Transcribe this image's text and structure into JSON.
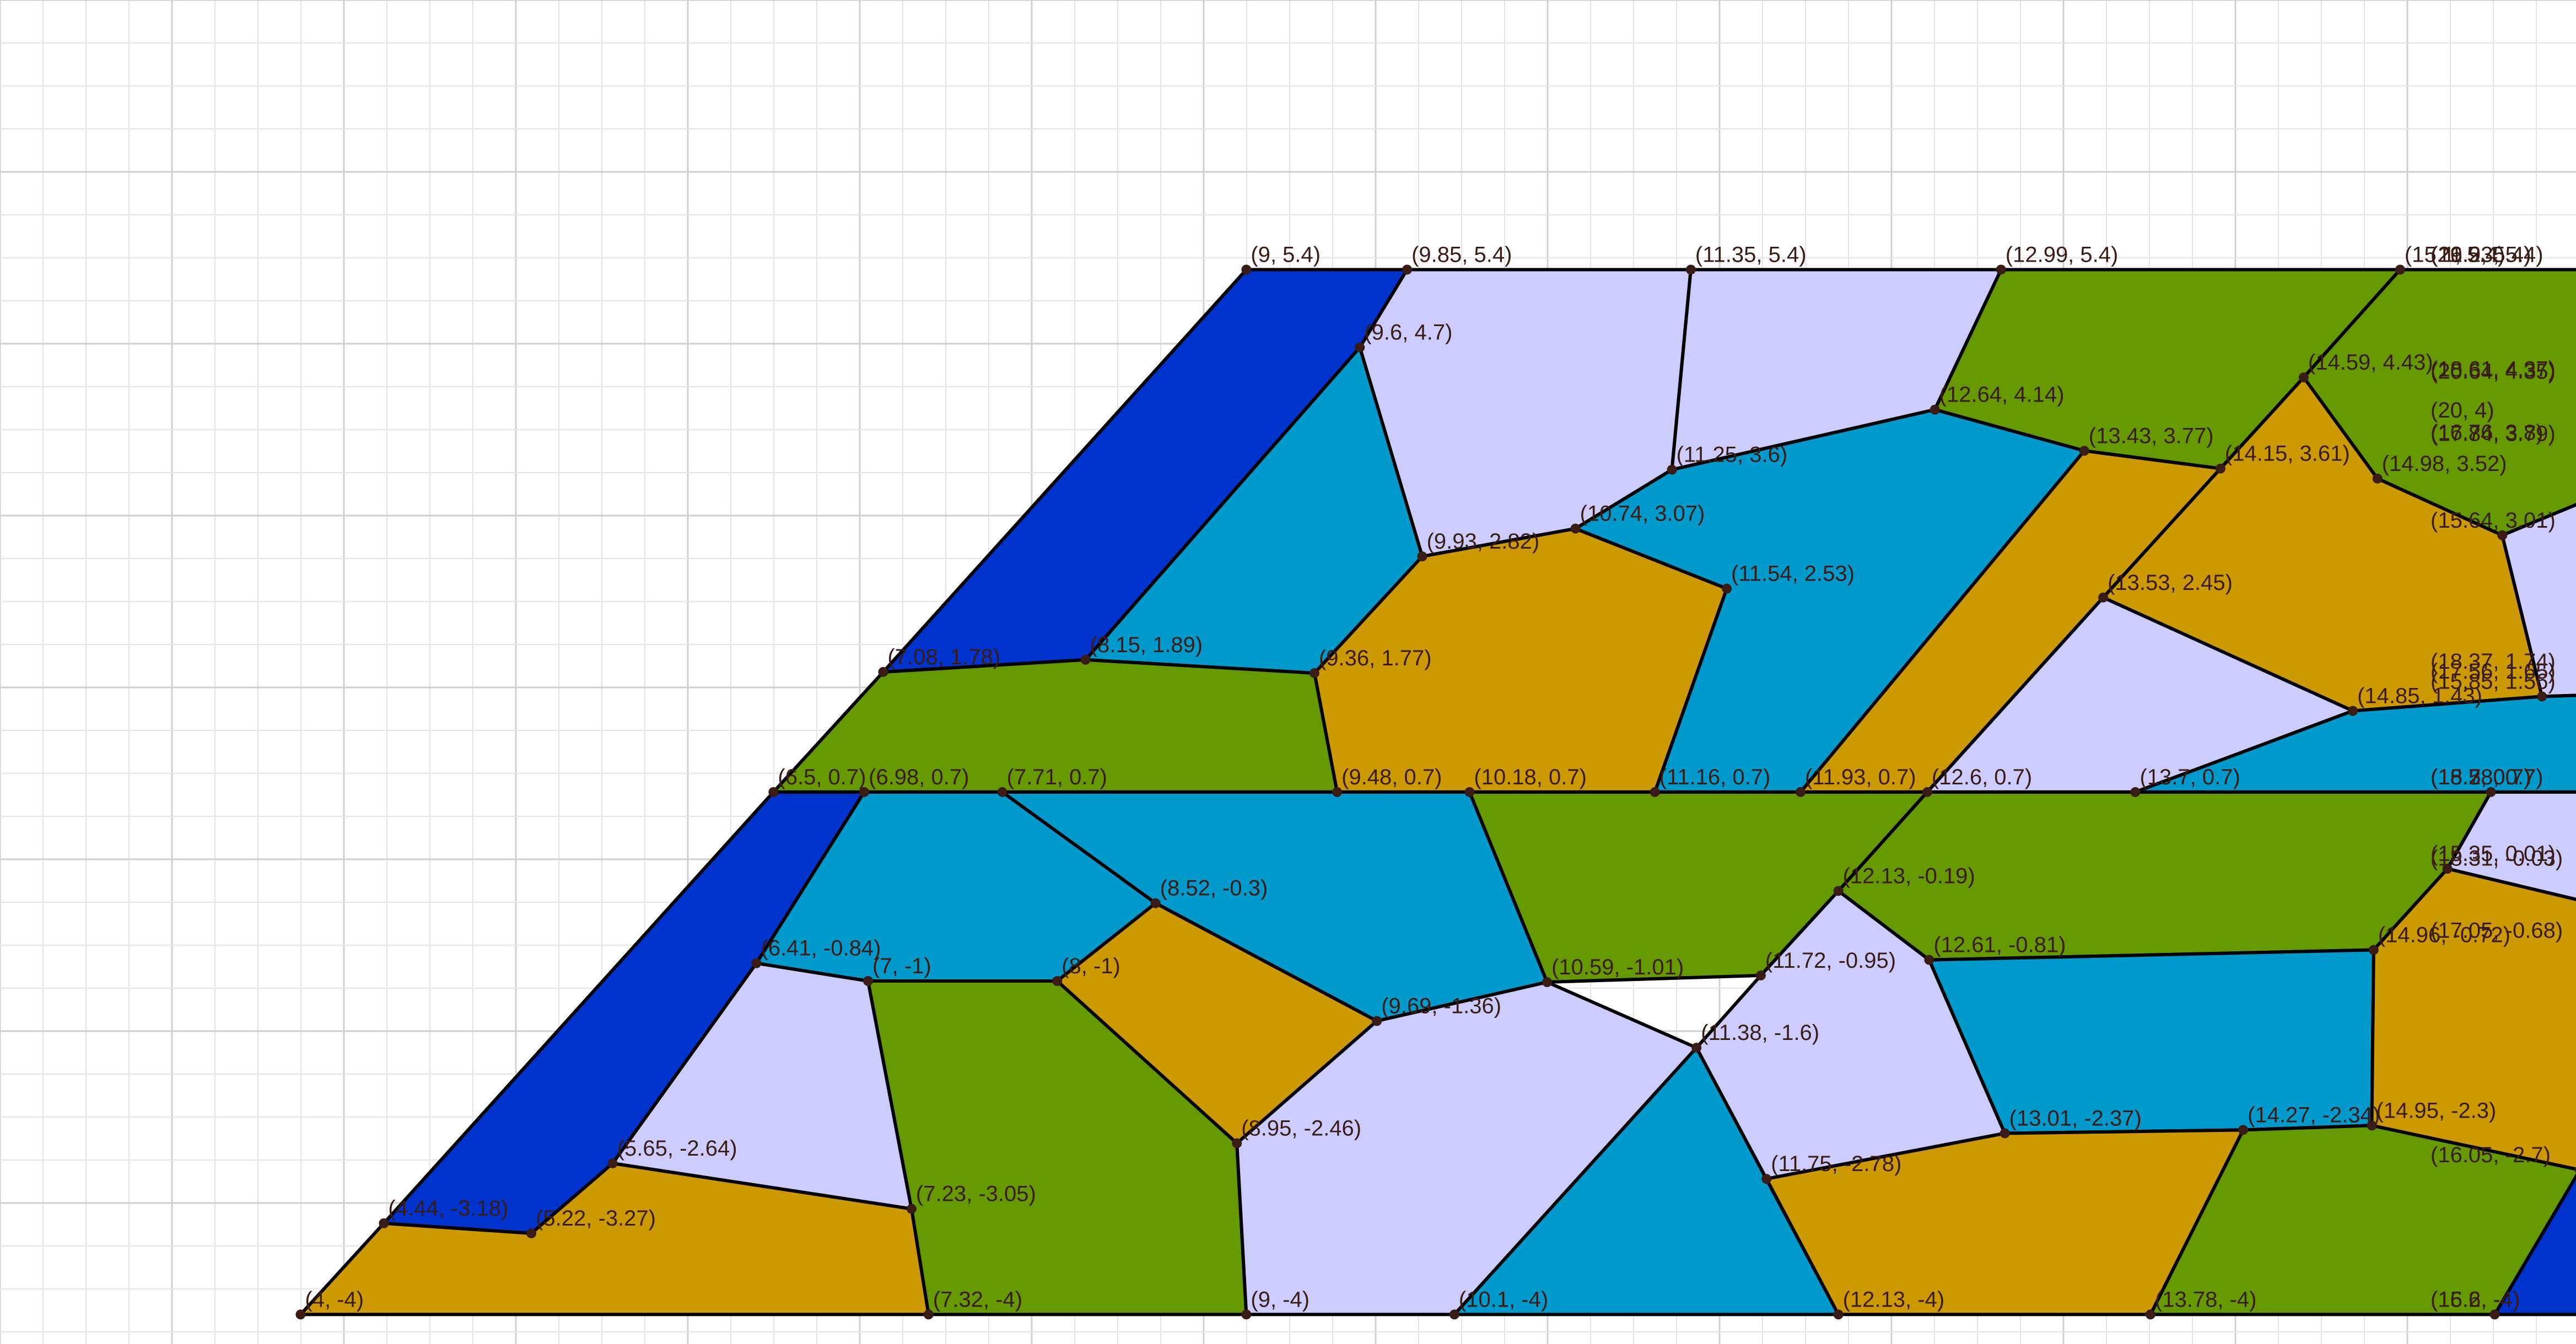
{
  "colors": {
    "navy": "#0033cc",
    "teal": "#0099cc",
    "olive": "#669900",
    "gold": "#cc9900",
    "lavender": "#ccccff"
  },
  "labels": [
    {
      "text": "(9, 5.4)",
      "x": 9,
      "y": 5.4
    },
    {
      "text": "(9.85, 5.4)",
      "x": 9.85,
      "y": 5.4
    },
    {
      "text": "(11.35, 5.4)",
      "x": 11.35,
      "y": 5.4
    },
    {
      "text": "(12.99, 5.4)",
      "x": 12.99,
      "y": 5.4
    },
    {
      "text": "(15.1, 5.4)",
      "x": 15.1,
      "y": 5.4
    },
    {
      "text": "(16.93, 5.4)",
      "x": 16.93,
      "y": 5.4
    },
    {
      "text": "(19.2, 5.4)",
      "x": 19.2,
      "y": 5.4
    },
    {
      "text": "(21.2, 5.4)",
      "x": 21.2,
      "y": 5.4
    },
    {
      "text": "(9.6, 4.7)",
      "x": 9.6,
      "y": 4.7
    },
    {
      "text": "(14.59, 4.43)",
      "x": 14.59,
      "y": 4.43
    },
    {
      "text": "(18.61, 4.37)",
      "x": 18.61,
      "y": 4.37
    },
    {
      "text": "(20.64, 4.35)",
      "x": 20.64,
      "y": 4.35
    },
    {
      "text": "(12.64, 4.14)",
      "x": 12.64,
      "y": 4.14
    },
    {
      "text": "(20, 4)",
      "x": 20,
      "y": 4
    },
    {
      "text": "(16.76, 3.8)",
      "x": 16.76,
      "y": 3.8
    },
    {
      "text": "(17.84, 3.79)",
      "x": 17.84,
      "y": 3.79
    },
    {
      "text": "(13.43, 3.77)",
      "x": 13.43,
      "y": 3.77
    },
    {
      "text": "(14.15, 3.61)",
      "x": 14.15,
      "y": 3.61
    },
    {
      "text": "(11.25, 3.6)",
      "x": 11.25,
      "y": 3.6
    },
    {
      "text": "(14.98, 3.52)",
      "x": 14.98,
      "y": 3.52
    },
    {
      "text": "(10.74, 3.07)",
      "x": 10.74,
      "y": 3.07
    },
    {
      "text": "(15.64, 3.01)",
      "x": 15.64,
      "y": 3.01
    },
    {
      "text": "(9.93, 2.82)",
      "x": 9.93,
      "y": 2.82
    },
    {
      "text": "(11.54, 2.53)",
      "x": 11.54,
      "y": 2.53
    },
    {
      "text": "(13.53, 2.45)",
      "x": 13.53,
      "y": 2.45
    },
    {
      "text": "(8.15, 1.89)",
      "x": 8.15,
      "y": 1.89
    },
    {
      "text": "(7.08, 1.78)",
      "x": 7.08,
      "y": 1.78
    },
    {
      "text": "(9.36, 1.77)",
      "x": 9.36,
      "y": 1.77
    },
    {
      "text": "(18.37, 1.74)",
      "x": 18.37,
      "y": 1.74
    },
    {
      "text": "(17.56, 1.65)",
      "x": 17.56,
      "y": 1.65
    },
    {
      "text": "(15.85, 1.56)",
      "x": 15.85,
      "y": 1.56
    },
    {
      "text": "(14.85, 1.43)",
      "x": 14.85,
      "y": 1.43
    },
    {
      "text": "(6.5, 0.7)",
      "x": 6.5,
      "y": 0.7
    },
    {
      "text": "(6.98, 0.7)",
      "x": 6.98,
      "y": 0.7
    },
    {
      "text": "(7.71, 0.7)",
      "x": 7.71,
      "y": 0.7
    },
    {
      "text": "(9.48, 0.7)",
      "x": 9.48,
      "y": 0.7
    },
    {
      "text": "(10.18, 0.7)",
      "x": 10.18,
      "y": 0.7
    },
    {
      "text": "(11.16, 0.7)",
      "x": 11.16,
      "y": 0.7
    },
    {
      "text": "(11.93, 0.7)",
      "x": 11.93,
      "y": 0.7
    },
    {
      "text": "(12.6, 0.7)",
      "x": 12.6,
      "y": 0.7
    },
    {
      "text": "(13.7, 0.7)",
      "x": 13.7,
      "y": 0.7
    },
    {
      "text": "(15.58, 0.7)",
      "x": 15.58,
      "y": 0.7
    },
    {
      "text": "(18.2, 0.7)",
      "x": 18.2,
      "y": 0.7
    },
    {
      "text": "(18.7, 0.7)",
      "x": 18.7,
      "y": 0.7
    },
    {
      "text": "(15.35, 0.01)",
      "x": 15.35,
      "y": 0.01
    },
    {
      "text": "(18.31, -0.03)",
      "x": 18.31,
      "y": -0.03
    },
    {
      "text": "(12.13, -0.19)",
      "x": 12.13,
      "y": -0.19
    },
    {
      "text": "(8.52, -0.3)",
      "x": 8.52,
      "y": -0.3
    },
    {
      "text": "(17.05, -0.68)",
      "x": 17.05,
      "y": -0.68
    },
    {
      "text": "(14.96, -0.72)",
      "x": 14.96,
      "y": -0.72
    },
    {
      "text": "(12.61, -0.81)",
      "x": 12.61,
      "y": -0.81
    },
    {
      "text": "(6.41, -0.84)",
      "x": 6.41,
      "y": -0.84
    },
    {
      "text": "(11.72, -0.95)",
      "x": 11.72,
      "y": -0.95
    },
    {
      "text": "(7, -1)",
      "x": 7,
      "y": -1
    },
    {
      "text": "(8, -1)",
      "x": 8,
      "y": -1
    },
    {
      "text": "(10.59, -1.01)",
      "x": 10.59,
      "y": -1.01
    },
    {
      "text": "(9.69, -1.36)",
      "x": 9.69,
      "y": -1.36
    },
    {
      "text": "(11.38, -1.6)",
      "x": 11.38,
      "y": -1.6
    },
    {
      "text": "(14.95, -2.3)",
      "x": 14.95,
      "y": -2.3
    },
    {
      "text": "(14.27, -2.34)",
      "x": 14.27,
      "y": -2.34
    },
    {
      "text": "(13.01, -2.37)",
      "x": 13.01,
      "y": -2.37
    },
    {
      "text": "(8.95, -2.46)",
      "x": 8.95,
      "y": -2.46
    },
    {
      "text": "(5.65, -2.64)",
      "x": 5.65,
      "y": -2.64
    },
    {
      "text": "(16.05, -2.7)",
      "x": 16.05,
      "y": -2.7
    },
    {
      "text": "(11.75, -2.78)",
      "x": 11.75,
      "y": -2.78
    },
    {
      "text": "(7.23, -3.05)",
      "x": 7.23,
      "y": -3.05
    },
    {
      "text": "(4.44, -3.18)",
      "x": 4.44,
      "y": -3.18
    },
    {
      "text": "(5.22, -3.27)",
      "x": 5.22,
      "y": -3.27
    },
    {
      "text": "(4, -4)",
      "x": 4,
      "y": -4
    },
    {
      "text": "(7.32, -4)",
      "x": 7.32,
      "y": -4
    },
    {
      "text": "(9, -4)",
      "x": 9,
      "y": -4
    },
    {
      "text": "(10.1, -4)",
      "x": 10.1,
      "y": -4
    },
    {
      "text": "(12.13, -4)",
      "x": 12.13,
      "y": -4
    },
    {
      "text": "(13.78, -4)",
      "x": 13.78,
      "y": -4
    },
    {
      "text": "(15.6, -4)",
      "x": 15.6,
      "y": -4
    },
    {
      "text": "(16.2, -4)",
      "x": 16.2,
      "y": -4
    }
  ],
  "regions": [
    {
      "color": "navy",
      "points": [
        [
          9,
          5.4
        ],
        [
          9.85,
          5.4
        ],
        [
          9.6,
          4.7
        ],
        [
          8.15,
          1.89
        ],
        [
          7.08,
          1.78
        ]
      ]
    },
    {
      "color": "lavender",
      "points": [
        [
          9.85,
          5.4
        ],
        [
          11.35,
          5.4
        ],
        [
          11.25,
          3.6
        ],
        [
          10.74,
          3.07
        ],
        [
          9.93,
          2.82
        ],
        [
          9.6,
          4.7
        ]
      ]
    },
    {
      "color": "lavender",
      "points": [
        [
          11.35,
          5.4
        ],
        [
          12.99,
          5.4
        ],
        [
          12.64,
          4.14
        ],
        [
          11.25,
          3.6
        ]
      ]
    },
    {
      "color": "olive",
      "points": [
        [
          12.99,
          5.4
        ],
        [
          15.1,
          5.4
        ],
        [
          14.59,
          4.43
        ],
        [
          14.15,
          3.61
        ],
        [
          13.43,
          3.77
        ],
        [
          12.64,
          4.14
        ]
      ]
    },
    {
      "color": "olive",
      "points": [
        [
          15.1,
          5.4
        ],
        [
          16.93,
          5.4
        ],
        [
          16.76,
          3.8
        ],
        [
          15.64,
          3.01
        ],
        [
          14.98,
          3.52
        ],
        [
          14.59,
          4.43
        ]
      ]
    },
    {
      "color": "gold",
      "points": [
        [
          16.93,
          5.4
        ],
        [
          19.2,
          5.4
        ],
        [
          18.61,
          4.37
        ],
        [
          17.84,
          3.79
        ],
        [
          16.76,
          3.8
        ]
      ]
    },
    {
      "color": "teal",
      "points": [
        [
          19.2,
          5.4
        ],
        [
          21.2,
          5.4
        ],
        [
          20.64,
          4.35
        ],
        [
          20,
          4
        ],
        [
          18.61,
          4.37
        ]
      ]
    },
    {
      "color": "teal",
      "points": [
        [
          9.6,
          4.7
        ],
        [
          9.93,
          2.82
        ],
        [
          9.36,
          1.77
        ],
        [
          8.15,
          1.89
        ]
      ]
    },
    {
      "color": "gold",
      "points": [
        [
          9.93,
          2.82
        ],
        [
          10.74,
          3.07
        ],
        [
          11.54,
          2.53
        ],
        [
          11.16,
          0.7
        ],
        [
          9.48,
          0.7
        ],
        [
          9.36,
          1.77
        ]
      ]
    },
    {
      "color": "teal",
      "points": [
        [
          11.25,
          3.6
        ],
        [
          12.64,
          4.14
        ],
        [
          13.43,
          3.77
        ],
        [
          11.93,
          0.7
        ],
        [
          11.16,
          0.7
        ],
        [
          11.54,
          2.53
        ],
        [
          10.74,
          3.07
        ]
      ]
    },
    {
      "color": "gold",
      "points": [
        [
          13.43,
          3.77
        ],
        [
          14.15,
          3.61
        ],
        [
          13.53,
          2.45
        ],
        [
          12.6,
          0.7
        ],
        [
          11.93,
          0.7
        ]
      ]
    },
    {
      "color": "gold",
      "points": [
        [
          14.15,
          3.61
        ],
        [
          14.59,
          4.43
        ],
        [
          14.98,
          3.52
        ],
        [
          15.64,
          3.01
        ],
        [
          15.85,
          1.56
        ],
        [
          14.85,
          1.43
        ],
        [
          13.53,
          2.45
        ]
      ]
    },
    {
      "color": "lavender",
      "points": [
        [
          13.53,
          2.45
        ],
        [
          14.85,
          1.43
        ],
        [
          13.7,
          0.7
        ],
        [
          12.6,
          0.7
        ]
      ]
    },
    {
      "color": "lavender",
      "points": [
        [
          15.64,
          3.01
        ],
        [
          16.76,
          3.8
        ],
        [
          17.84,
          3.79
        ],
        [
          17.56,
          1.65
        ],
        [
          15.85,
          1.56
        ]
      ]
    },
    {
      "color": "olive",
      "points": [
        [
          17.84,
          3.79
        ],
        [
          18.61,
          4.37
        ],
        [
          20,
          4
        ],
        [
          18.37,
          1.74
        ],
        [
          17.56,
          1.65
        ]
      ]
    },
    {
      "color": "navy",
      "points": [
        [
          20,
          4
        ],
        [
          20.64,
          4.35
        ],
        [
          18.7,
          0.7
        ],
        [
          18.2,
          0.7
        ],
        [
          18.37,
          1.74
        ]
      ]
    },
    {
      "color": "olive",
      "points": [
        [
          7.08,
          1.78
        ],
        [
          8.15,
          1.89
        ],
        [
          9.36,
          1.77
        ],
        [
          9.48,
          0.7
        ],
        [
          6.5,
          0.7
        ]
      ]
    },
    {
      "color": "teal",
      "points": [
        [
          14.85,
          1.43
        ],
        [
          15.85,
          1.56
        ],
        [
          17.56,
          1.65
        ],
        [
          18.37,
          1.74
        ],
        [
          18.2,
          0.7
        ],
        [
          13.7,
          0.7
        ]
      ]
    },
    {
      "color": "navy",
      "points": [
        [
          6.5,
          0.7
        ],
        [
          6.98,
          0.7
        ],
        [
          6.41,
          -0.84
        ],
        [
          5.65,
          -2.64
        ],
        [
          5.22,
          -3.27
        ],
        [
          4.44,
          -3.18
        ]
      ]
    },
    {
      "color": "teal",
      "points": [
        [
          6.98,
          0.7
        ],
        [
          7.71,
          0.7
        ],
        [
          8.52,
          -0.3
        ],
        [
          8,
          -1
        ],
        [
          7,
          -1
        ],
        [
          6.41,
          -0.84
        ]
      ]
    },
    {
      "color": "teal",
      "points": [
        [
          7.71,
          0.7
        ],
        [
          10.18,
          0.7
        ],
        [
          10.59,
          -1.01
        ],
        [
          9.69,
          -1.36
        ],
        [
          8.52,
          -0.3
        ]
      ]
    },
    {
      "color": "olive",
      "points": [
        [
          10.18,
          0.7
        ],
        [
          12.6,
          0.7
        ],
        [
          12.13,
          -0.19
        ],
        [
          11.72,
          -0.95
        ],
        [
          10.59,
          -1.01
        ]
      ]
    },
    {
      "color": "olive",
      "points": [
        [
          12.6,
          0.7
        ],
        [
          15.58,
          0.7
        ],
        [
          15.35,
          0.01
        ],
        [
          14.96,
          -0.72
        ],
        [
          12.61,
          -0.81
        ],
        [
          12.13,
          -0.19
        ]
      ]
    },
    {
      "color": "lavender",
      "points": [
        [
          15.58,
          0.7
        ],
        [
          18.7,
          0.7
        ],
        [
          18.31,
          -0.03
        ],
        [
          17.05,
          -0.68
        ],
        [
          15.35,
          0.01
        ]
      ]
    },
    {
      "color": "gold",
      "points": [
        [
          8,
          -1
        ],
        [
          8.52,
          -0.3
        ],
        [
          9.69,
          -1.36
        ],
        [
          8.95,
          -2.46
        ]
      ]
    },
    {
      "color": "lavender",
      "points": [
        [
          6.41,
          -0.84
        ],
        [
          7,
          -1
        ],
        [
          7.23,
          -3.05
        ],
        [
          5.65,
          -2.64
        ]
      ]
    },
    {
      "color": "olive",
      "points": [
        [
          7,
          -1
        ],
        [
          8,
          -1
        ],
        [
          8.95,
          -2.46
        ],
        [
          9,
          -4
        ],
        [
          7.32,
          -4
        ],
        [
          7.23,
          -3.05
        ]
      ]
    },
    {
      "color": "lavender",
      "points": [
        [
          9.69,
          -1.36
        ],
        [
          10.59,
          -1.01
        ],
        [
          11.38,
          -1.6
        ],
        [
          10.1,
          -4
        ],
        [
          9,
          -4
        ],
        [
          8.95,
          -2.46
        ]
      ]
    },
    {
      "color": "lavender",
      "points": [
        [
          11.72,
          -0.95
        ],
        [
          12.13,
          -0.19
        ],
        [
          12.61,
          -0.81
        ],
        [
          13.01,
          -2.37
        ],
        [
          11.75,
          -2.78
        ],
        [
          11.38,
          -1.6
        ]
      ]
    },
    {
      "color": "teal",
      "points": [
        [
          12.61,
          -0.81
        ],
        [
          14.96,
          -0.72
        ],
        [
          14.95,
          -2.3
        ],
        [
          14.27,
          -2.34
        ],
        [
          13.01,
          -2.37
        ]
      ]
    },
    {
      "color": "gold",
      "points": [
        [
          14.96,
          -0.72
        ],
        [
          15.35,
          0.01
        ],
        [
          17.05,
          -0.68
        ],
        [
          16.05,
          -2.7
        ],
        [
          14.95,
          -2.3
        ]
      ]
    },
    {
      "color": "navy",
      "points": [
        [
          17.05,
          -0.68
        ],
        [
          18.31,
          -0.03
        ],
        [
          16.2,
          -4
        ],
        [
          15.6,
          -4
        ],
        [
          16.05,
          -2.7
        ]
      ]
    },
    {
      "color": "teal",
      "points": [
        [
          11.38,
          -1.6
        ],
        [
          12.13,
          -4
        ],
        [
          10.1,
          -4
        ]
      ]
    },
    {
      "color": "gold",
      "points": [
        [
          11.75,
          -2.78
        ],
        [
          13.01,
          -2.37
        ],
        [
          14.27,
          -2.34
        ],
        [
          13.78,
          -4
        ],
        [
          12.13,
          -4
        ]
      ]
    },
    {
      "color": "olive",
      "points": [
        [
          14.27,
          -2.34
        ],
        [
          14.95,
          -2.3
        ],
        [
          16.05,
          -2.7
        ],
        [
          15.6,
          -4
        ],
        [
          13.78,
          -4
        ]
      ]
    },
    {
      "color": "gold",
      "points": [
        [
          4,
          -4
        ],
        [
          7.32,
          -4
        ],
        [
          7.23,
          -3.05
        ],
        [
          5.65,
          -2.64
        ],
        [
          5.22,
          -3.27
        ],
        [
          4.44,
          -3.18
        ]
      ]
    }
  ]
}
